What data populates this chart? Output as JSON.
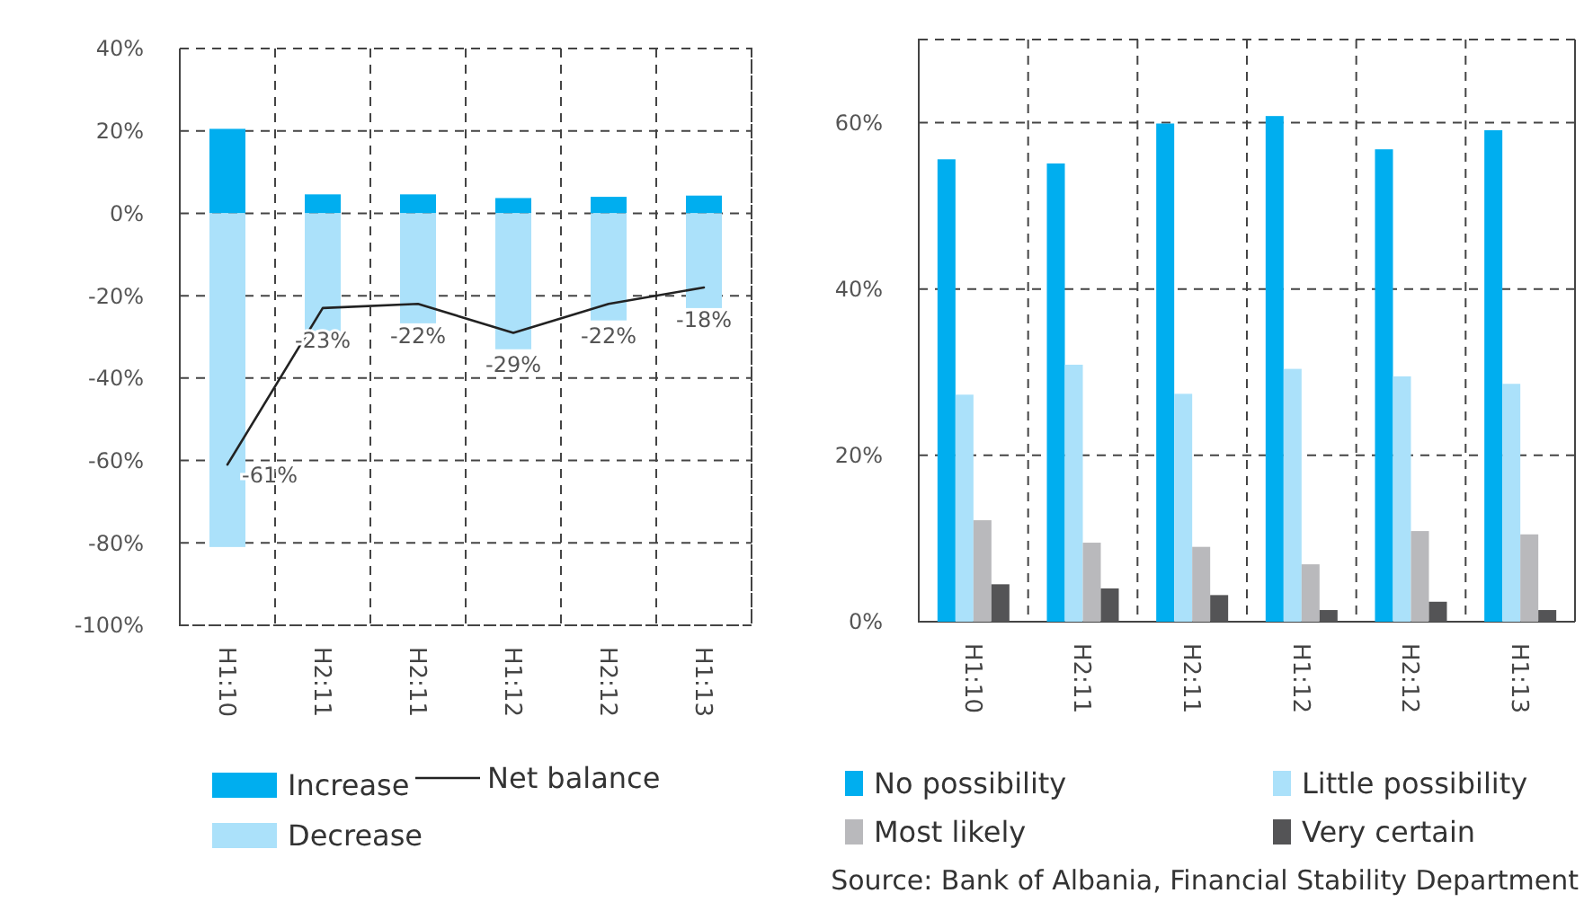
{
  "chart_data": [
    {
      "type": "bar",
      "stacked": true,
      "categories": [
        "H1:10",
        "H2:11",
        "H2:11",
        "H1:12",
        "H2:12",
        "H1:13"
      ],
      "ylim": [
        -100,
        40
      ],
      "yticks": [
        {
          "value": -100,
          "label": "-100%"
        },
        {
          "value": -80,
          "label": "-80%"
        },
        {
          "value": -60,
          "label": "-60%"
        },
        {
          "value": -40,
          "label": "-40%"
        },
        {
          "value": -20,
          "label": "-20%"
        },
        {
          "value": 0,
          "label": "0%"
        },
        {
          "value": 20,
          "label": "20%"
        },
        {
          "value": 40,
          "label": "40%"
        }
      ],
      "grid": true,
      "legend": "bottom",
      "series": [
        {
          "name": "Increase",
          "color": "#00aeef",
          "values": [
            20.5,
            4.6,
            4.6,
            3.7,
            4,
            4.3
          ]
        },
        {
          "name": "Decrease",
          "color": "#abe1fa",
          "values": [
            -81,
            -28.6,
            -26.7,
            -33,
            -26,
            -23
          ]
        },
        {
          "name": "Net balance",
          "type": "line",
          "color": "#222222",
          "values": [
            -61,
            -23,
            -22,
            -29,
            -22,
            -18
          ],
          "value_labels": [
            "-61%",
            "-23%",
            "-22%",
            "-29%",
            "-22%",
            "-18%"
          ]
        }
      ]
    },
    {
      "type": "bar",
      "categories": [
        "H1:10",
        "H2:11",
        "H2:11",
        "H1:12",
        "H2:12",
        "H1:13"
      ],
      "ylim": [
        0,
        70
      ],
      "yticks": [
        {
          "value": 0,
          "label": "0%"
        },
        {
          "value": 20,
          "label": "20%"
        },
        {
          "value": 40,
          "label": "40%"
        },
        {
          "value": 60,
          "label": "60%"
        }
      ],
      "grid": true,
      "legend": "bottom",
      "annotations": [
        "Source: Bank of Albania, Financial Stability Department"
      ],
      "series": [
        {
          "name": "No possibility",
          "color": "#00aeef",
          "values": [
            55.6,
            55.1,
            59.9,
            60.8,
            56.8,
            59.1
          ]
        },
        {
          "name": "Little possibility",
          "color": "#abe1fa",
          "values": [
            27.3,
            30.9,
            27.4,
            30.4,
            29.5,
            28.6
          ]
        },
        {
          "name": "Most likely",
          "color": "#b9b9bc",
          "values": [
            12.2,
            9.5,
            9.0,
            6.9,
            10.9,
            10.5
          ]
        },
        {
          "name": "Very certain",
          "color": "#545456",
          "values": [
            4.5,
            4.0,
            3.2,
            1.4,
            2.4,
            1.4
          ]
        }
      ]
    }
  ]
}
